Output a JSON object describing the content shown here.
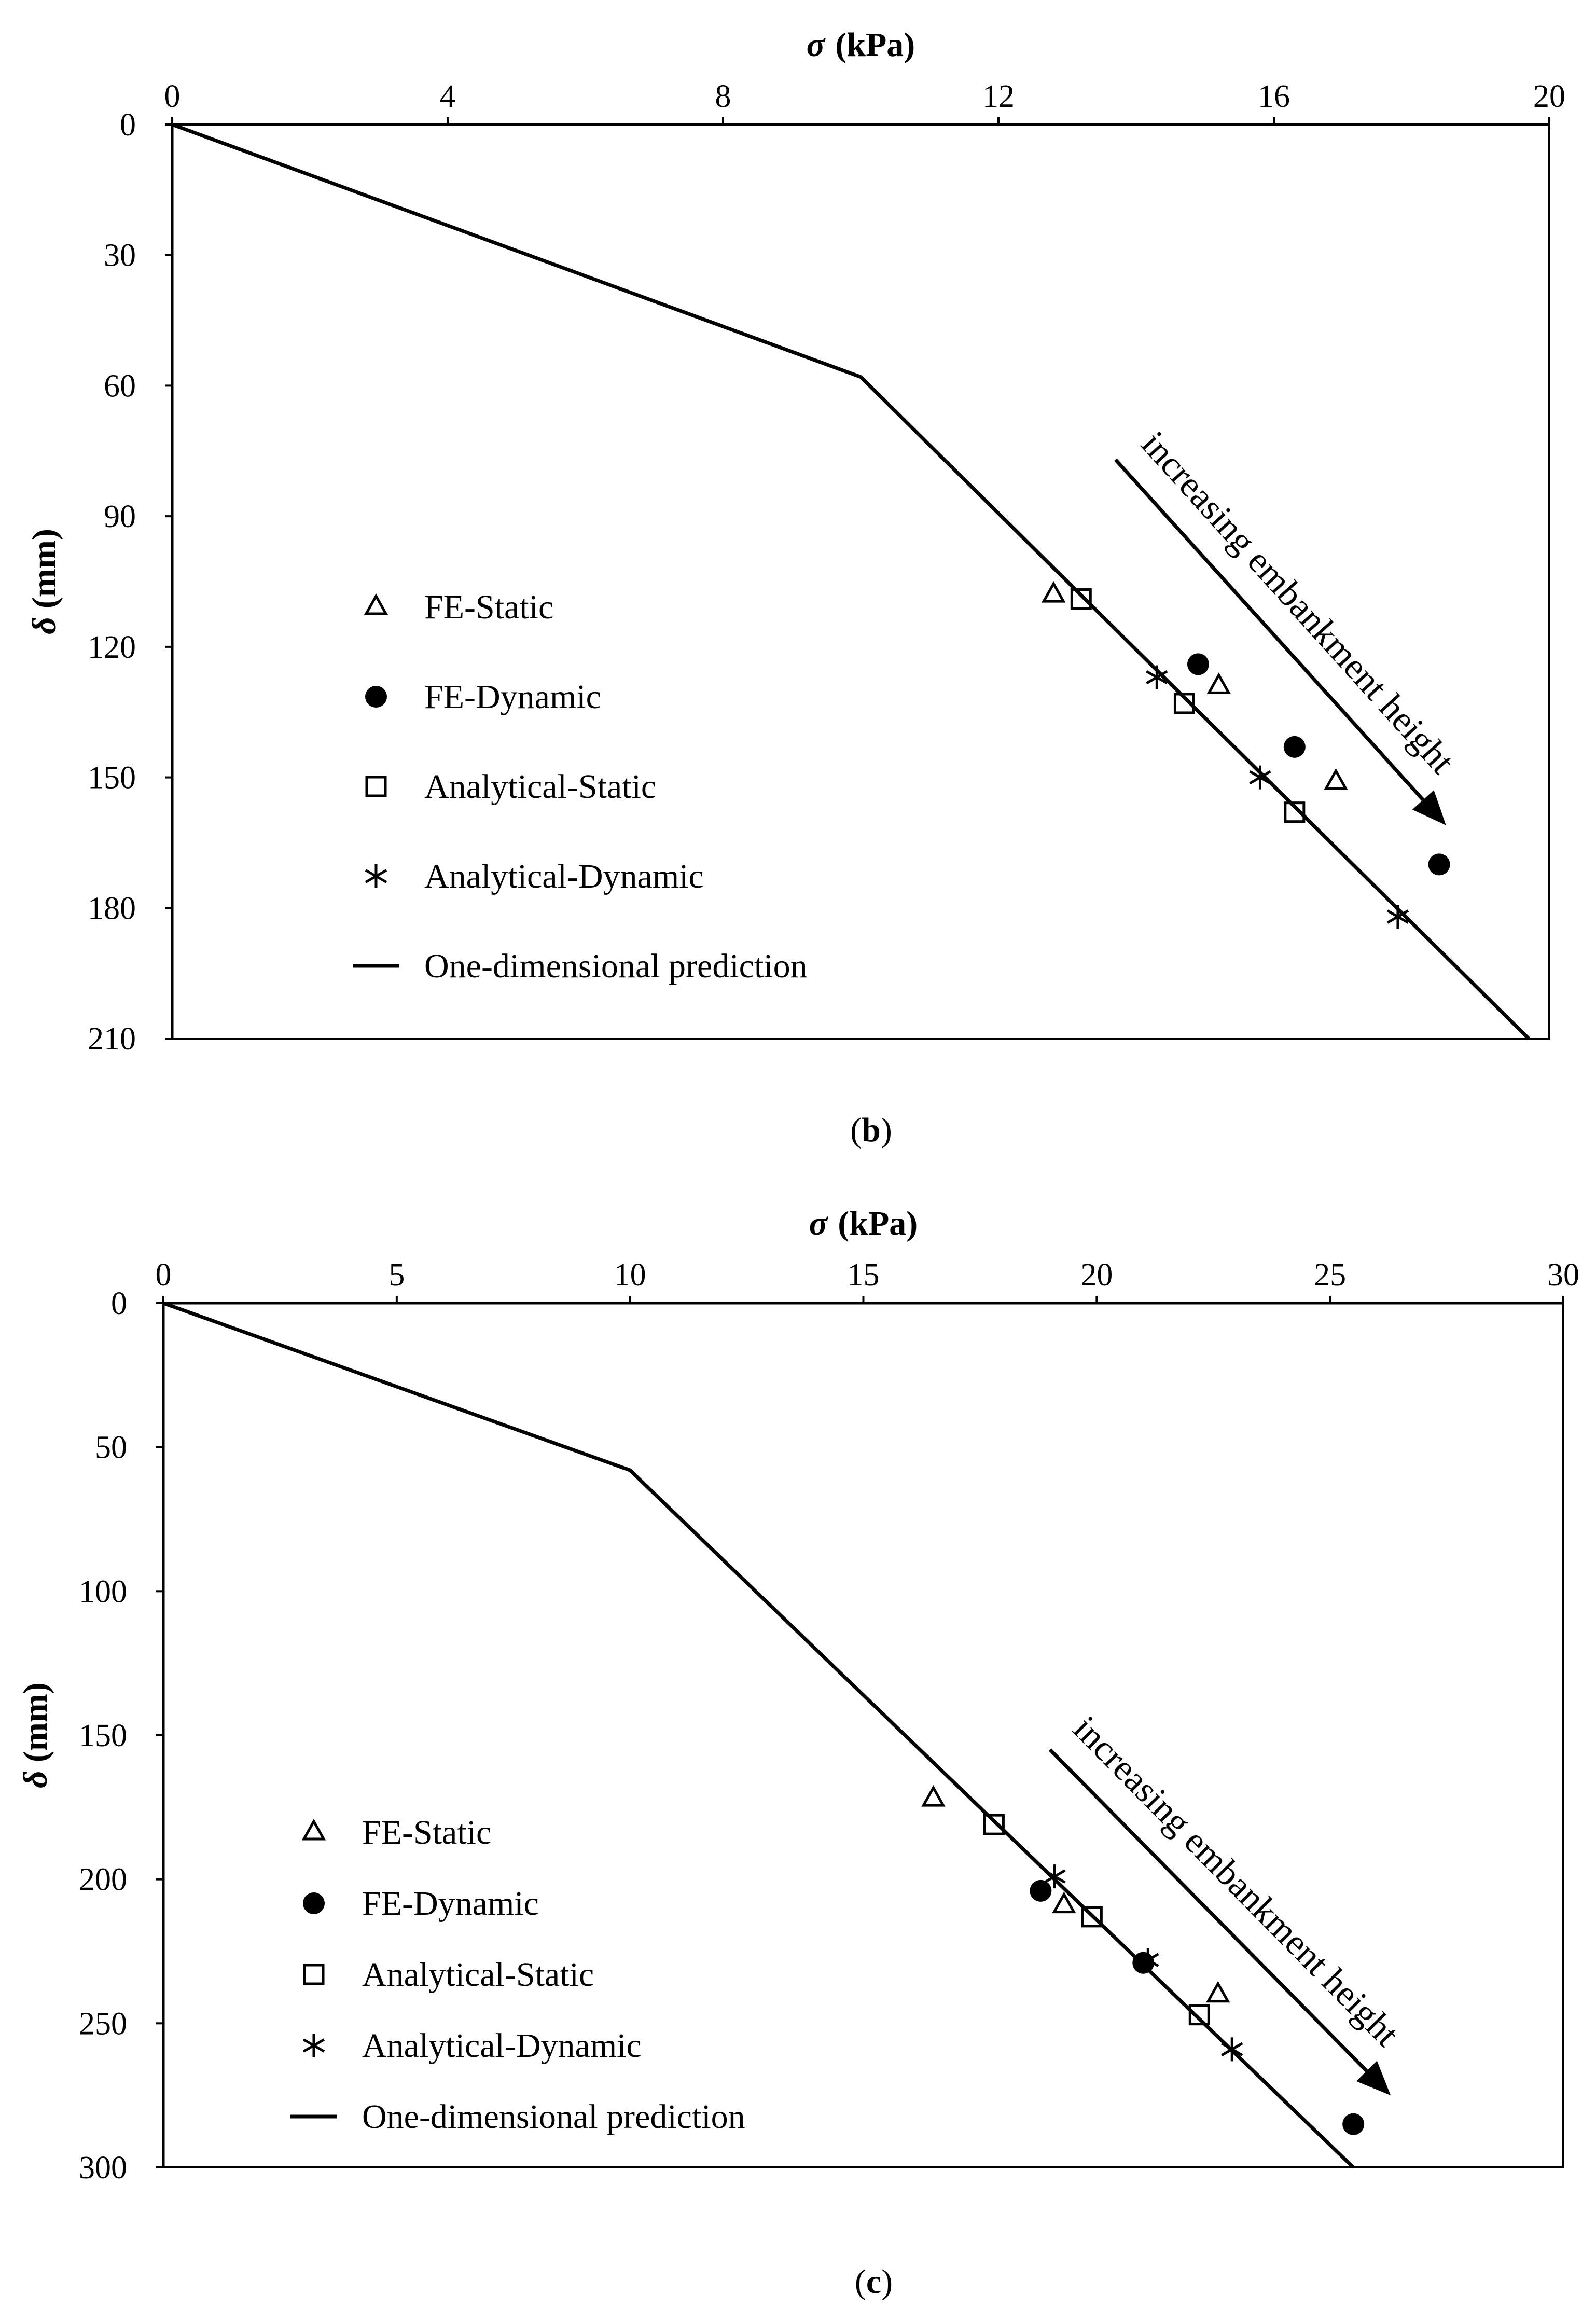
{
  "chart_data": [
    {
      "id": "b",
      "type": "scatter",
      "caption": "(b)",
      "caption_letter": "b",
      "xlabel_symbol": "σ",
      "xlabel_unit": "(kPa)",
      "ylabel_symbol": "δ",
      "ylabel_unit": "(mm)",
      "xlim": [
        0,
        20
      ],
      "ylim": [
        0,
        210
      ],
      "x_ticks": [
        0,
        4,
        8,
        12,
        16,
        20
      ],
      "y_ticks": [
        0,
        30,
        60,
        90,
        120,
        150,
        180,
        210
      ],
      "y_inverted": true,
      "x_axis_position": "top",
      "legend_position": "left",
      "annotation": {
        "text": "increasing embankment height",
        "from": [
          13.7,
          77
        ],
        "to": [
          18.5,
          161
        ]
      },
      "series": [
        {
          "name": "FE-Static",
          "marker": "triangle",
          "points": [
            [
              12.8,
              108
            ],
            [
              15.2,
              129
            ],
            [
              16.9,
              151
            ]
          ]
        },
        {
          "name": "FE-Dynamic",
          "marker": "circle",
          "points": [
            [
              14.9,
              124
            ],
            [
              16.3,
              143
            ],
            [
              18.4,
              170
            ]
          ]
        },
        {
          "name": "Analytical-Static",
          "marker": "square",
          "points": [
            [
              13.2,
              109
            ],
            [
              14.7,
              133
            ],
            [
              16.3,
              158
            ]
          ]
        },
        {
          "name": "Analytical-Dynamic",
          "marker": "asterisk",
          "points": [
            [
              14.3,
              127
            ],
            [
              15.8,
              150
            ],
            [
              17.8,
              182
            ]
          ]
        },
        {
          "name": "One-dimensional prediction",
          "marker": "line",
          "points": [
            [
              0,
              0
            ],
            [
              10,
              58
            ],
            [
              19.7,
              210
            ]
          ]
        }
      ]
    },
    {
      "id": "c",
      "type": "scatter",
      "caption": "(c)",
      "caption_letter": "c",
      "xlabel_symbol": "σ",
      "xlabel_unit": "(kPa)",
      "ylabel_symbol": "δ",
      "ylabel_unit": "(mm)",
      "xlim": [
        0,
        30
      ],
      "ylim": [
        0,
        300
      ],
      "x_ticks": [
        0,
        5,
        10,
        15,
        20,
        25,
        30
      ],
      "y_ticks": [
        0,
        50,
        100,
        150,
        200,
        250,
        300
      ],
      "y_inverted": true,
      "x_axis_position": "top",
      "legend_position": "left",
      "annotation": {
        "text": "increasing embankment height",
        "from": [
          19,
          155
        ],
        "to": [
          26.3,
          275
        ]
      },
      "series": [
        {
          "name": "FE-Static",
          "marker": "triangle",
          "points": [
            [
              16.5,
              172
            ],
            [
              19.3,
              209
            ],
            [
              22.6,
              240
            ]
          ]
        },
        {
          "name": "FE-Dynamic",
          "marker": "circle",
          "points": [
            [
              18.8,
              204
            ],
            [
              21,
              229
            ],
            [
              25.5,
              285
            ]
          ]
        },
        {
          "name": "Analytical-Static",
          "marker": "square",
          "points": [
            [
              17.8,
              181
            ],
            [
              19.9,
              213
            ],
            [
              22.2,
              247
            ]
          ]
        },
        {
          "name": "Analytical-Dynamic",
          "marker": "asterisk",
          "points": [
            [
              19.1,
              199
            ],
            [
              21.1,
              228
            ],
            [
              22.9,
              259
            ]
          ]
        },
        {
          "name": "One-dimensional prediction",
          "marker": "line",
          "points": [
            [
              0,
              0
            ],
            [
              10,
              58
            ],
            [
              25.5,
              300
            ]
          ]
        }
      ]
    }
  ]
}
